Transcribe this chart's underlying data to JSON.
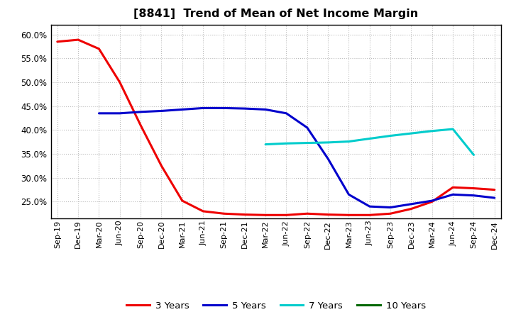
{
  "title": "[8841]  Trend of Mean of Net Income Margin",
  "background_color": "#ffffff",
  "plot_background_color": "#ffffff",
  "grid_color": "#bbbbbb",
  "x_labels": [
    "Sep-19",
    "Dec-19",
    "Mar-20",
    "Jun-20",
    "Sep-20",
    "Dec-20",
    "Mar-21",
    "Jun-21",
    "Sep-21",
    "Dec-21",
    "Mar-22",
    "Jun-22",
    "Sep-22",
    "Dec-22",
    "Mar-23",
    "Jun-23",
    "Sep-23",
    "Dec-23",
    "Mar-24",
    "Jun-24",
    "Sep-24",
    "Dec-24"
  ],
  "series": {
    "3 Years": {
      "color": "#ee0000",
      "data_x": [
        0,
        1,
        2,
        3,
        4,
        5,
        6,
        7,
        8,
        9,
        10,
        11,
        12,
        13,
        14,
        15,
        16,
        17,
        18,
        19,
        20,
        21
      ],
      "data_y": [
        58.5,
        58.9,
        57.0,
        50.0,
        41.0,
        32.5,
        25.2,
        23.0,
        22.5,
        22.3,
        22.2,
        22.2,
        22.5,
        22.3,
        22.2,
        22.2,
        22.5,
        23.5,
        25.0,
        28.0,
        27.8,
        27.5
      ]
    },
    "5 Years": {
      "color": "#0000cc",
      "data_x": [
        2,
        3,
        4,
        5,
        6,
        7,
        8,
        9,
        10,
        11,
        12,
        13,
        14,
        15,
        16,
        17,
        18,
        19,
        20,
        21
      ],
      "data_y": [
        43.5,
        43.5,
        43.8,
        44.0,
        44.3,
        44.6,
        44.6,
        44.5,
        44.3,
        43.5,
        40.5,
        34.0,
        26.5,
        24.0,
        23.8,
        24.5,
        25.2,
        26.5,
        26.3,
        25.8
      ]
    },
    "7 Years": {
      "color": "#00cccc",
      "data_x": [
        10,
        11,
        12,
        13,
        14,
        15,
        16,
        17,
        18,
        19,
        20
      ],
      "data_y": [
        37.0,
        37.2,
        37.3,
        37.4,
        37.6,
        38.2,
        38.8,
        39.3,
        39.8,
        40.2,
        34.8
      ]
    },
    "10 Years": {
      "color": "#006600",
      "data_x": [],
      "data_y": []
    }
  },
  "ylim_min": 21.5,
  "ylim_max": 62.0,
  "yticks": [
    25.0,
    30.0,
    35.0,
    40.0,
    45.0,
    50.0,
    55.0,
    60.0
  ],
  "legend_entries": [
    "3 Years",
    "5 Years",
    "7 Years",
    "10 Years"
  ],
  "legend_colors": [
    "#ee0000",
    "#0000cc",
    "#00cccc",
    "#006600"
  ],
  "line_width": 2.2
}
